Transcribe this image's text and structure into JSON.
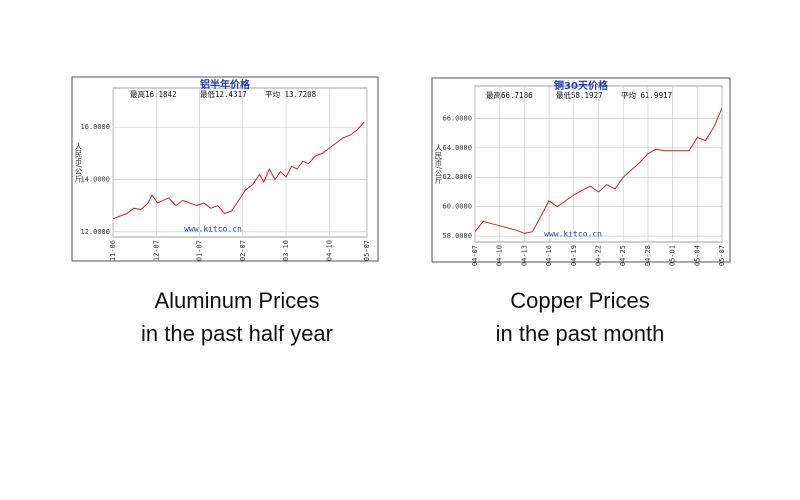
{
  "chart_data": [
    {
      "type": "line",
      "title": "铝半年价格",
      "stats": [
        "最高16.1842",
        "最低12.4317",
        "平均 13.7208"
      ],
      "y_label": "人民币/公斤",
      "watermark": "www.kitco.cn",
      "caption": [
        "Aluminum Prices",
        "in the past half year"
      ],
      "x": [
        0,
        5,
        10,
        15,
        20,
        25,
        28,
        32,
        36,
        40,
        45,
        50,
        55,
        60,
        65,
        70,
        75,
        80,
        85,
        90,
        95,
        100,
        105,
        108,
        112,
        116,
        120,
        124,
        128,
        132,
        136,
        140,
        145,
        150,
        155,
        160,
        165,
        170,
        175,
        180
      ],
      "values": [
        12.5,
        12.6,
        12.7,
        12.9,
        12.85,
        13.1,
        13.4,
        13.1,
        13.2,
        13.3,
        13.0,
        13.2,
        13.1,
        13.0,
        13.1,
        12.9,
        13.0,
        12.7,
        12.8,
        13.2,
        13.6,
        13.8,
        14.2,
        13.9,
        14.4,
        14.0,
        14.3,
        14.1,
        14.5,
        14.4,
        14.7,
        14.6,
        14.9,
        15.0,
        15.2,
        15.4,
        15.6,
        15.7,
        15.9,
        16.2
      ],
      "color": "#d42020",
      "grid": true,
      "xlim": [
        0,
        182
      ],
      "xticks": [
        {
          "value": 0,
          "label": "11-06"
        },
        {
          "value": 31,
          "label": "12-07"
        },
        {
          "value": 62,
          "label": "01-07"
        },
        {
          "value": 93,
          "label": "02-07"
        },
        {
          "value": 124,
          "label": "03-10"
        },
        {
          "value": 155,
          "label": "04-10"
        },
        {
          "value": 182,
          "label": "05-07"
        }
      ],
      "ylim": [
        11.8,
        17.5
      ],
      "yticks": [
        {
          "value": 12,
          "label": "12.0000"
        },
        {
          "value": 14,
          "label": "14.0000"
        },
        {
          "value": 16,
          "label": "16.0000"
        }
      ]
    },
    {
      "type": "line",
      "title": "铜30天价格",
      "stats": [
        "最高66.7186",
        "最低58.1927",
        "平均 61.9917"
      ],
      "y_label": "人民币/公斤",
      "watermark": "www.kitco.cn",
      "caption": [
        "Copper Prices",
        "in the past month"
      ],
      "x": [
        0,
        1,
        3,
        5,
        6,
        7,
        9,
        10,
        12,
        14,
        15,
        16,
        17,
        18,
        20,
        21,
        22,
        23,
        25,
        26,
        27,
        28,
        29,
        30
      ],
      "values": [
        58.3,
        59.0,
        58.7,
        58.4,
        58.2,
        58.3,
        60.4,
        60.0,
        60.8,
        61.4,
        61.0,
        61.5,
        61.2,
        62.0,
        63.0,
        63.6,
        63.9,
        63.8,
        63.8,
        63.8,
        64.7,
        64.5,
        65.4,
        66.7
      ],
      "color": "#d42020",
      "grid": true,
      "xlim": [
        0,
        30
      ],
      "xticks": [
        {
          "value": 0,
          "label": "04-07"
        },
        {
          "value": 3,
          "label": "04-10"
        },
        {
          "value": 6,
          "label": "04-13"
        },
        {
          "value": 9,
          "label": "04-16"
        },
        {
          "value": 12,
          "label": "04-19"
        },
        {
          "value": 15,
          "label": "04-22"
        },
        {
          "value": 18,
          "label": "04-25"
        },
        {
          "value": 21,
          "label": "04-28"
        },
        {
          "value": 24,
          "label": "05-01"
        },
        {
          "value": 27,
          "label": "05-04"
        },
        {
          "value": 30,
          "label": "05-07"
        }
      ],
      "ylim": [
        57.6,
        68.2
      ],
      "yticks": [
        {
          "value": 58,
          "label": "58.0000"
        },
        {
          "value": 60,
          "label": "60.0000"
        },
        {
          "value": 62,
          "label": "62.0000"
        },
        {
          "value": 64,
          "label": "64.0000"
        },
        {
          "value": 66,
          "label": "66.0000"
        }
      ]
    }
  ]
}
